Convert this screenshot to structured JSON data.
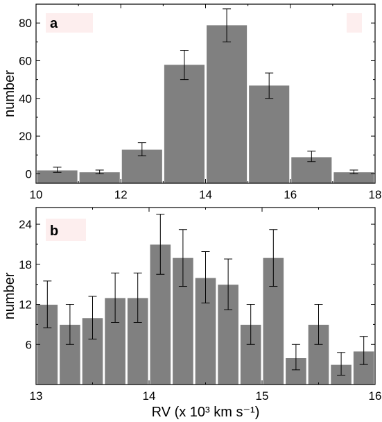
{
  "chart_data": [
    {
      "type": "bar",
      "panel_label": "a",
      "xlabel": "",
      "ylabel": "number",
      "xlim": [
        10,
        18
      ],
      "ylim": [
        -5,
        90
      ],
      "x_ticks": [
        10,
        12,
        14,
        16,
        18
      ],
      "y_ticks": [
        0,
        20,
        40,
        60,
        80
      ],
      "bin_width": 1,
      "bin_starts": [
        10,
        11,
        12,
        13,
        14,
        15,
        16,
        17
      ],
      "values": [
        2,
        1,
        13,
        58,
        79,
        47,
        9,
        1
      ],
      "error_low": [
        0.8,
        0.0,
        9.5,
        50,
        70,
        40,
        6.5,
        0.0
      ],
      "error_high": [
        3.5,
        2.0,
        16.5,
        65.5,
        87.5,
        53.5,
        12,
        2.0
      ],
      "bar_color": "#808080",
      "marker_color": "#fdeeee"
    },
    {
      "type": "bar",
      "panel_label": "b",
      "xlabel": "RV (x 10³ km s⁻¹)",
      "ylabel": "number",
      "xlim": [
        13,
        16
      ],
      "ylim": [
        0,
        26.5
      ],
      "x_ticks": [
        13,
        14,
        15,
        16
      ],
      "y_ticks": [
        6,
        12,
        18,
        24
      ],
      "bin_width": 0.2,
      "bin_starts": [
        13.0,
        13.2,
        13.4,
        13.6,
        13.8,
        14.0,
        14.2,
        14.4,
        14.6,
        14.8,
        15.0,
        15.2,
        15.4,
        15.6,
        15.8
      ],
      "values": [
        12,
        9,
        10,
        13,
        13,
        21,
        19,
        16,
        15,
        9,
        19,
        4,
        9,
        3,
        5
      ],
      "error_low": [
        8.5,
        6,
        6.8,
        9.3,
        9.3,
        16.5,
        14.7,
        12.2,
        11.2,
        6,
        14.7,
        2.2,
        6,
        1.4,
        3
      ],
      "error_high": [
        15.5,
        12,
        13.2,
        16.7,
        16.7,
        25.5,
        23.2,
        19.9,
        18.8,
        12,
        23.2,
        6,
        12,
        4.8,
        7.2
      ],
      "bar_color": "#808080",
      "marker_color": "#fdeeee"
    }
  ]
}
